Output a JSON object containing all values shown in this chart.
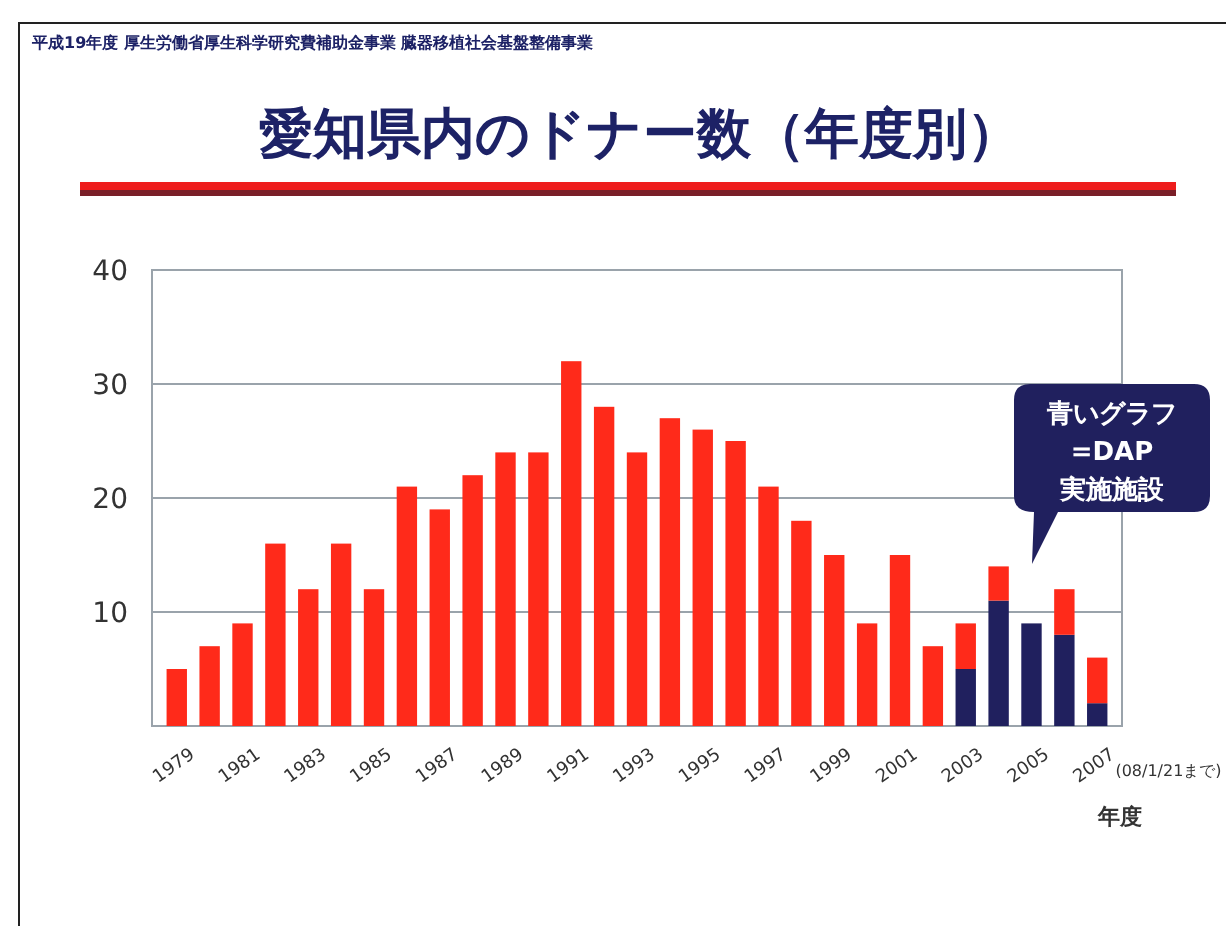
{
  "chart_data": {
    "type": "bar",
    "title": "愛知県内のドナー数（年度別）",
    "xlabel": "年度",
    "categories": [
      "1979",
      null,
      "1981",
      null,
      "1983",
      null,
      "1985",
      null,
      "1987",
      null,
      "1989",
      null,
      "1991",
      null,
      "1993",
      null,
      "1995",
      null,
      "1997",
      null,
      "1999",
      null,
      "2001",
      null,
      "2003",
      null,
      "2005",
      null,
      "2007"
    ],
    "stacked": true,
    "series": [
      {
        "color": "#20205e",
        "values": [
          null,
          null,
          null,
          null,
          null,
          null,
          null,
          null,
          null,
          null,
          null,
          null,
          null,
          null,
          null,
          null,
          null,
          null,
          null,
          null,
          null,
          null,
          null,
          null,
          5,
          11,
          9,
          8,
          2
        ]
      },
      {
        "color": "#ff2a1a",
        "values": [
          5,
          7,
          9,
          16,
          12,
          16,
          12,
          21,
          19,
          22,
          24,
          24,
          32,
          28,
          24,
          27,
          26,
          25,
          21,
          18,
          15,
          9,
          15,
          7,
          4,
          3,
          null,
          4,
          4
        ]
      }
    ],
    "ylim": [
      0,
      40
    ],
    "yticks": [
      10,
      20,
      30,
      40
    ],
    "grid": "y",
    "annotations": [
      "平成19年度 厚生労働省厚生科学研究費補助金事業 臓器移植社会基盤整備事業",
      "青いグラフ\n=DAP\n実施施設",
      "(08/1/21まで)"
    ]
  }
}
